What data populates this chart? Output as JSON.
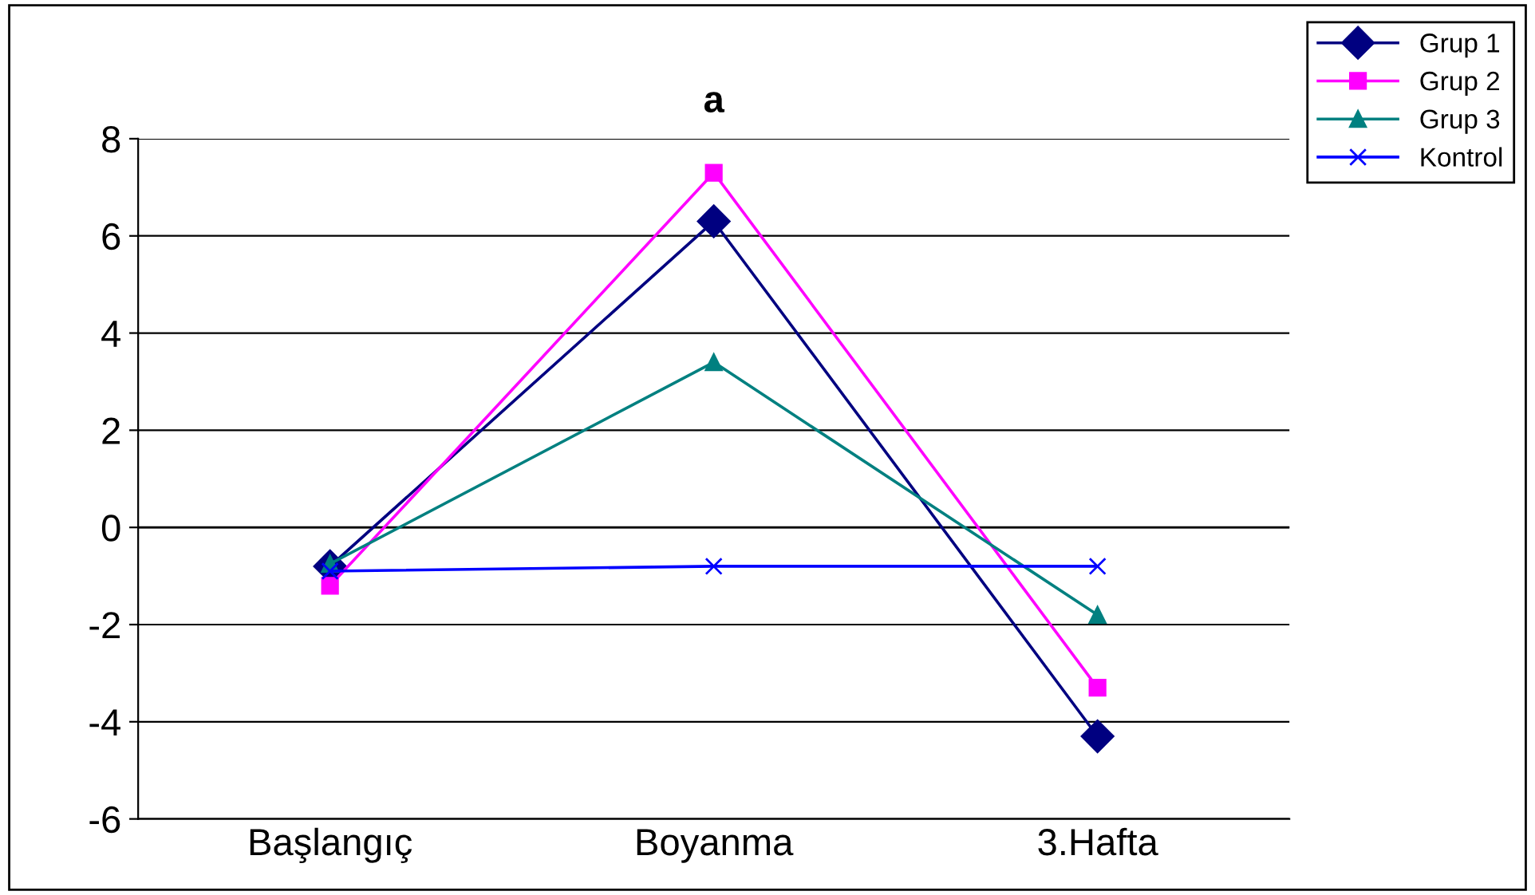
{
  "chart_data": {
    "type": "line",
    "title": "a",
    "categories": [
      "Başlangıç",
      "Boyanma",
      "3.Hafta"
    ],
    "series": [
      {
        "name": "Grup 1",
        "color": "#000080",
        "marker": "diamond",
        "values": [
          -0.8,
          6.3,
          -4.3
        ]
      },
      {
        "name": "Grup 2",
        "color": "#ff00ff",
        "marker": "square",
        "values": [
          -1.2,
          7.3,
          -3.3
        ]
      },
      {
        "name": "Grup 3",
        "color": "#008080",
        "marker": "triangle",
        "values": [
          -0.75,
          3.4,
          -1.8
        ]
      },
      {
        "name": "Kontrol",
        "color": "#0000ff",
        "marker": "cross",
        "values": [
          -0.9,
          -0.8,
          -0.8
        ]
      }
    ],
    "ylim": [
      -6,
      8
    ],
    "yticks": [
      -6,
      -4,
      -2,
      0,
      2,
      4,
      6,
      8
    ],
    "grid": "y",
    "legend": "top right"
  }
}
